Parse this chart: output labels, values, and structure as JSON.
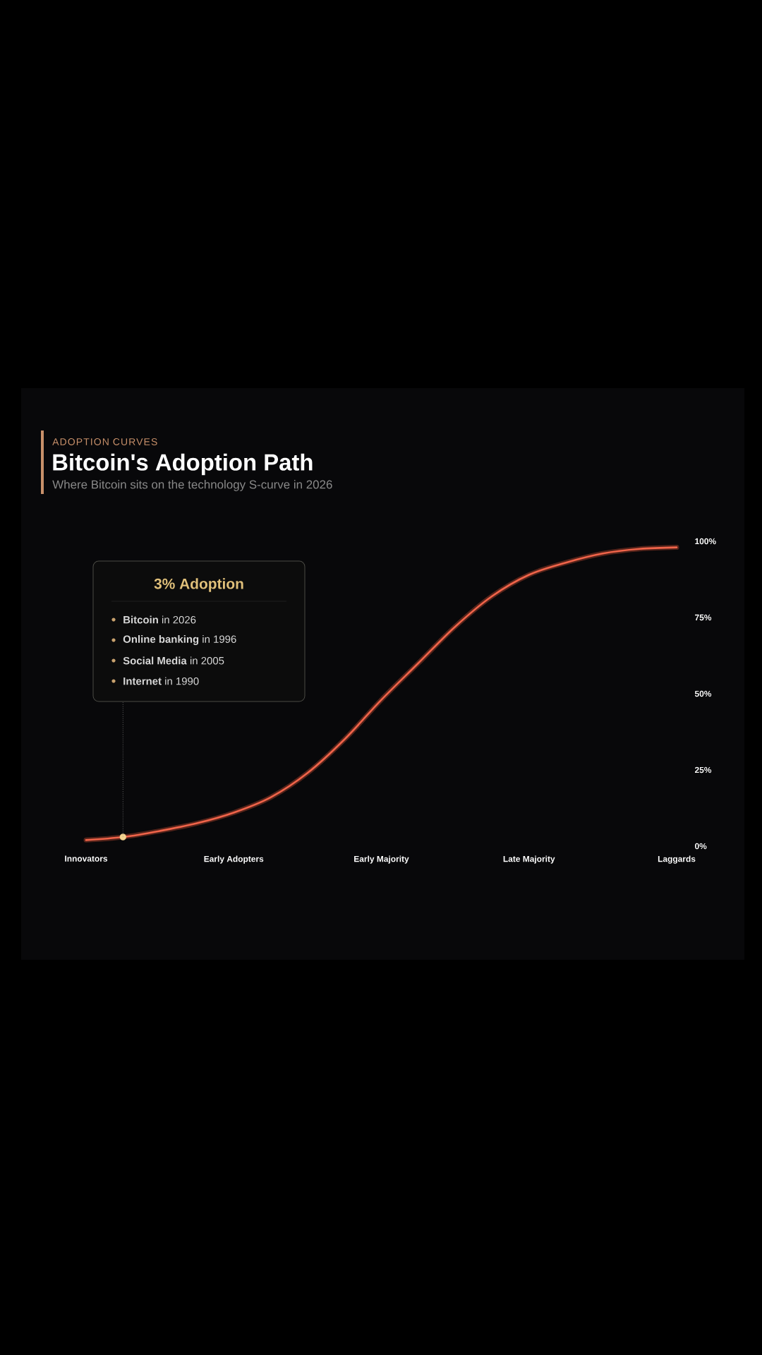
{
  "chart_data": {
    "type": "line",
    "title": "Bitcoin's Adoption Path",
    "subtitle": "Where Bitcoin sits on the technology S-curve in 2026",
    "annotations": [
      "ADOPTION CURVES",
      "3% Adoption",
      "**Bitcoin** in 2026",
      "**Online banking** in 1996",
      "**Social Media** in 2005",
      "**Internet** in 1990"
    ],
    "categories": [
      "Innovators",
      null,
      null,
      null,
      "Early Adopters",
      null,
      null,
      null,
      "Early Majority",
      null,
      null,
      null,
      "Late Majority",
      null,
      null,
      null,
      "Laggards"
    ],
    "ylim": [
      0,
      100
    ],
    "yticks": [
      {
        "value": 0,
        "label": "0%"
      },
      {
        "value": 25,
        "label": "25%"
      },
      {
        "value": 50,
        "label": "50%"
      },
      {
        "value": 75,
        "label": "75%"
      },
      {
        "value": 100,
        "label": "100%"
      }
    ],
    "series": [
      {
        "type": "line",
        "color": "#f0644a",
        "values": [
          2,
          3,
          5,
          7.5,
          11,
          16,
          24,
          35,
          48,
          60,
          72,
          82,
          89,
          93,
          96,
          97.5,
          98
        ]
      },
      {
        "type": "scatter",
        "color": "#f5d48f",
        "marker": "circle",
        "values": [
          null,
          3,
          null,
          null,
          null,
          null,
          null,
          null,
          null,
          null,
          null,
          null,
          null,
          null,
          null,
          null,
          null
        ]
      }
    ]
  }
}
